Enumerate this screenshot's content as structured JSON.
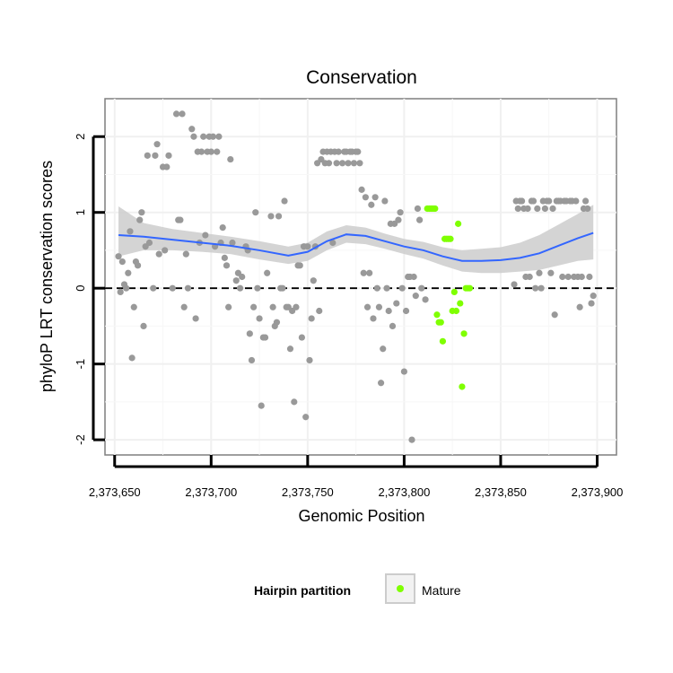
{
  "chart_data": {
    "type": "scatter",
    "title": "Conservation",
    "xlabel": "Genomic Position",
    "ylabel": "phyloP LRT conservation scores",
    "xlim": [
      2373645,
      2373910
    ],
    "ylim": [
      -2.2,
      2.5
    ],
    "x_ticks": [
      2373650,
      2373700,
      2373750,
      2373800,
      2373850,
      2373900
    ],
    "x_tick_labels": [
      "2,373,650",
      "2,373,700",
      "2,373,750",
      "2,373,800",
      "2,373,850",
      "2,373,900"
    ],
    "y_ticks": [
      -2,
      -1,
      0,
      1,
      2
    ],
    "y_tick_labels": [
      "-2",
      "-1",
      "0",
      "1",
      "2"
    ],
    "grid": true,
    "reference_line": {
      "y": 0,
      "style": "dashed"
    },
    "legend": {
      "title": "Hairpin partition",
      "position": "bottom",
      "entries": [
        {
          "label": "Mature",
          "color": "#7fff00"
        }
      ]
    },
    "colors": {
      "other": "#999999",
      "mature": "#7fff00",
      "smooth": "#3366ff",
      "band": "#cccccc"
    },
    "series": [
      {
        "name": "Other",
        "points": [
          [
            2373652,
            0.42
          ],
          [
            2373653,
            -0.05
          ],
          [
            2373654,
            0.35
          ],
          [
            2373655,
            0.05
          ],
          [
            2373656,
            0.0
          ],
          [
            2373657,
            0.2
          ],
          [
            2373658,
            0.75
          ],
          [
            2373659,
            -0.92
          ],
          [
            2373660,
            -0.25
          ],
          [
            2373661,
            0.35
          ],
          [
            2373662,
            0.3
          ],
          [
            2373663,
            0.9
          ],
          [
            2373664,
            1.0
          ],
          [
            2373665,
            -0.5
          ],
          [
            2373666,
            0.55
          ],
          [
            2373667,
            1.75
          ],
          [
            2373668,
            0.6
          ],
          [
            2373670,
            0.0
          ],
          [
            2373671,
            1.75
          ],
          [
            2373672,
            1.9
          ],
          [
            2373673,
            0.45
          ],
          [
            2373675,
            1.6
          ],
          [
            2373676,
            0.5
          ],
          [
            2373677,
            1.6
          ],
          [
            2373678,
            1.75
          ],
          [
            2373680,
            0.0
          ],
          [
            2373682,
            2.3
          ],
          [
            2373683,
            0.9
          ],
          [
            2373684,
            0.9
          ],
          [
            2373685,
            2.3
          ],
          [
            2373686,
            -0.25
          ],
          [
            2373687,
            0.45
          ],
          [
            2373688,
            0.0
          ],
          [
            2373690,
            2.1
          ],
          [
            2373691,
            2.0
          ],
          [
            2373692,
            -0.4
          ],
          [
            2373693,
            1.8
          ],
          [
            2373694,
            0.6
          ],
          [
            2373695,
            1.8
          ],
          [
            2373696,
            2.0
          ],
          [
            2373697,
            0.7
          ],
          [
            2373698,
            1.8
          ],
          [
            2373699,
            2.0
          ],
          [
            2373700,
            1.8
          ],
          [
            2373701,
            2.0
          ],
          [
            2373702,
            0.55
          ],
          [
            2373703,
            1.8
          ],
          [
            2373704,
            2.0
          ],
          [
            2373705,
            0.6
          ],
          [
            2373706,
            0.8
          ],
          [
            2373707,
            0.4
          ],
          [
            2373708,
            0.3
          ],
          [
            2373709,
            -0.25
          ],
          [
            2373710,
            1.7
          ],
          [
            2373711,
            0.6
          ],
          [
            2373713,
            0.1
          ],
          [
            2373714,
            0.2
          ],
          [
            2373715,
            0.0
          ],
          [
            2373716,
            0.15
          ],
          [
            2373718,
            0.55
          ],
          [
            2373719,
            0.5
          ],
          [
            2373720,
            -0.6
          ],
          [
            2373721,
            -0.95
          ],
          [
            2373722,
            -0.25
          ],
          [
            2373723,
            1.0
          ],
          [
            2373724,
            0.0
          ],
          [
            2373725,
            -0.4
          ],
          [
            2373726,
            -1.55
          ],
          [
            2373727,
            -0.65
          ],
          [
            2373728,
            -0.65
          ],
          [
            2373729,
            0.2
          ],
          [
            2373731,
            0.95
          ],
          [
            2373732,
            -0.25
          ],
          [
            2373733,
            -0.5
          ],
          [
            2373734,
            -0.45
          ],
          [
            2373735,
            0.95
          ],
          [
            2373736,
            0.0
          ],
          [
            2373737,
            0.0
          ],
          [
            2373738,
            1.15
          ],
          [
            2373739,
            -0.25
          ],
          [
            2373740,
            -0.25
          ],
          [
            2373741,
            -0.8
          ],
          [
            2373742,
            -0.3
          ],
          [
            2373743,
            -1.5
          ],
          [
            2373744,
            -0.25
          ],
          [
            2373745,
            0.3
          ],
          [
            2373746,
            0.3
          ],
          [
            2373747,
            -0.65
          ],
          [
            2373748,
            0.55
          ],
          [
            2373749,
            -1.7
          ],
          [
            2373750,
            0.55
          ],
          [
            2373751,
            -0.95
          ],
          [
            2373752,
            -0.4
          ],
          [
            2373753,
            0.1
          ],
          [
            2373754,
            0.55
          ],
          [
            2373755,
            1.65
          ],
          [
            2373756,
            -0.3
          ],
          [
            2373757,
            1.7
          ],
          [
            2373758,
            1.8
          ],
          [
            2373759,
            1.65
          ],
          [
            2373760,
            1.8
          ],
          [
            2373761,
            1.65
          ],
          [
            2373762,
            1.8
          ],
          [
            2373763,
            0.6
          ],
          [
            2373764,
            1.8
          ],
          [
            2373765,
            1.65
          ],
          [
            2373766,
            1.8
          ],
          [
            2373768,
            1.65
          ],
          [
            2373769,
            1.8
          ],
          [
            2373770,
            1.8
          ],
          [
            2373771,
            1.65
          ],
          [
            2373772,
            1.8
          ],
          [
            2373773,
            1.8
          ],
          [
            2373774,
            1.65
          ],
          [
            2373775,
            1.8
          ],
          [
            2373776,
            1.8
          ],
          [
            2373777,
            1.65
          ],
          [
            2373778,
            1.3
          ],
          [
            2373779,
            0.2
          ],
          [
            2373780,
            1.2
          ],
          [
            2373781,
            -0.25
          ],
          [
            2373782,
            0.2
          ],
          [
            2373783,
            1.1
          ],
          [
            2373784,
            -0.4
          ],
          [
            2373785,
            1.2
          ],
          [
            2373786,
            0.0
          ],
          [
            2373787,
            -0.25
          ],
          [
            2373788,
            -1.25
          ],
          [
            2373789,
            -0.8
          ],
          [
            2373790,
            1.15
          ],
          [
            2373791,
            0.0
          ],
          [
            2373792,
            -0.3
          ],
          [
            2373793,
            0.85
          ],
          [
            2373794,
            -0.5
          ],
          [
            2373795,
            0.85
          ],
          [
            2373796,
            -0.2
          ],
          [
            2373797,
            0.9
          ],
          [
            2373798,
            1.0
          ],
          [
            2373799,
            0.0
          ],
          [
            2373800,
            -1.1
          ],
          [
            2373801,
            -0.3
          ],
          [
            2373802,
            0.15
          ],
          [
            2373803,
            0.15
          ],
          [
            2373804,
            -2.0
          ],
          [
            2373805,
            0.15
          ],
          [
            2373806,
            -0.1
          ],
          [
            2373807,
            1.05
          ],
          [
            2373808,
            0.9
          ],
          [
            2373809,
            0.0
          ],
          [
            2373811,
            -0.15
          ],
          [
            2373857,
            0.05
          ],
          [
            2373858,
            1.15
          ],
          [
            2373859,
            1.05
          ],
          [
            2373860,
            1.15
          ],
          [
            2373861,
            1.15
          ],
          [
            2373862,
            1.05
          ],
          [
            2373863,
            0.15
          ],
          [
            2373864,
            1.05
          ],
          [
            2373865,
            0.15
          ],
          [
            2373866,
            1.15
          ],
          [
            2373867,
            1.15
          ],
          [
            2373868,
            0.0
          ],
          [
            2373869,
            1.05
          ],
          [
            2373870,
            0.2
          ],
          [
            2373871,
            0.0
          ],
          [
            2373872,
            1.15
          ],
          [
            2373873,
            1.05
          ],
          [
            2373874,
            1.15
          ],
          [
            2373875,
            1.15
          ],
          [
            2373876,
            0.2
          ],
          [
            2373877,
            1.05
          ],
          [
            2373878,
            -0.35
          ],
          [
            2373879,
            1.15
          ],
          [
            2373880,
            1.15
          ],
          [
            2373881,
            1.15
          ],
          [
            2373882,
            0.15
          ],
          [
            2373883,
            1.15
          ],
          [
            2373884,
            1.15
          ],
          [
            2373885,
            0.15
          ],
          [
            2373886,
            1.15
          ],
          [
            2373887,
            1.15
          ],
          [
            2373888,
            0.15
          ],
          [
            2373889,
            1.15
          ],
          [
            2373890,
            0.15
          ],
          [
            2373891,
            -0.25
          ],
          [
            2373892,
            0.15
          ],
          [
            2373893,
            1.05
          ],
          [
            2373894,
            1.15
          ],
          [
            2373895,
            1.05
          ],
          [
            2373896,
            0.15
          ],
          [
            2373897,
            -0.2
          ],
          [
            2373898,
            -0.1
          ]
        ]
      },
      {
        "name": "Mature",
        "points": [
          [
            2373812,
            1.05
          ],
          [
            2373813,
            1.05
          ],
          [
            2373814,
            1.05
          ],
          [
            2373815,
            1.05
          ],
          [
            2373816,
            1.05
          ],
          [
            2373817,
            -0.35
          ],
          [
            2373818,
            -0.45
          ],
          [
            2373819,
            -0.45
          ],
          [
            2373820,
            -0.7
          ],
          [
            2373821,
            0.65
          ],
          [
            2373822,
            0.65
          ],
          [
            2373823,
            0.65
          ],
          [
            2373824,
            0.65
          ],
          [
            2373825,
            -0.3
          ],
          [
            2373826,
            -0.05
          ],
          [
            2373827,
            -0.3
          ],
          [
            2373828,
            0.85
          ],
          [
            2373829,
            -0.2
          ],
          [
            2373830,
            -1.3
          ],
          [
            2373831,
            -0.6
          ],
          [
            2373832,
            0.0
          ],
          [
            2373833,
            0.0
          ],
          [
            2373834,
            0.0
          ]
        ]
      },
      {
        "name": "LOESS smooth",
        "x": [
          2373652,
          2373665,
          2373680,
          2373695,
          2373710,
          2373725,
          2373740,
          2373750,
          2373760,
          2373770,
          2373780,
          2373790,
          2373800,
          2373810,
          2373820,
          2373830,
          2373840,
          2373850,
          2373860,
          2373870,
          2373880,
          2373890,
          2373898
        ],
        "y": [
          0.7,
          0.68,
          0.64,
          0.6,
          0.56,
          0.5,
          0.43,
          0.48,
          0.62,
          0.71,
          0.69,
          0.62,
          0.55,
          0.5,
          0.42,
          0.36,
          0.36,
          0.37,
          0.4,
          0.46,
          0.56,
          0.66,
          0.73
        ],
        "ci_lower": [
          0.42,
          0.5,
          0.5,
          0.48,
          0.45,
          0.38,
          0.32,
          0.36,
          0.5,
          0.6,
          0.58,
          0.52,
          0.45,
          0.39,
          0.3,
          0.22,
          0.2,
          0.2,
          0.22,
          0.24,
          0.3,
          0.36,
          0.38
        ],
        "ci_upper": [
          1.08,
          0.86,
          0.78,
          0.73,
          0.68,
          0.62,
          0.55,
          0.6,
          0.75,
          0.83,
          0.8,
          0.72,
          0.65,
          0.61,
          0.54,
          0.5,
          0.52,
          0.54,
          0.6,
          0.7,
          0.84,
          0.98,
          1.1
        ]
      }
    ]
  }
}
